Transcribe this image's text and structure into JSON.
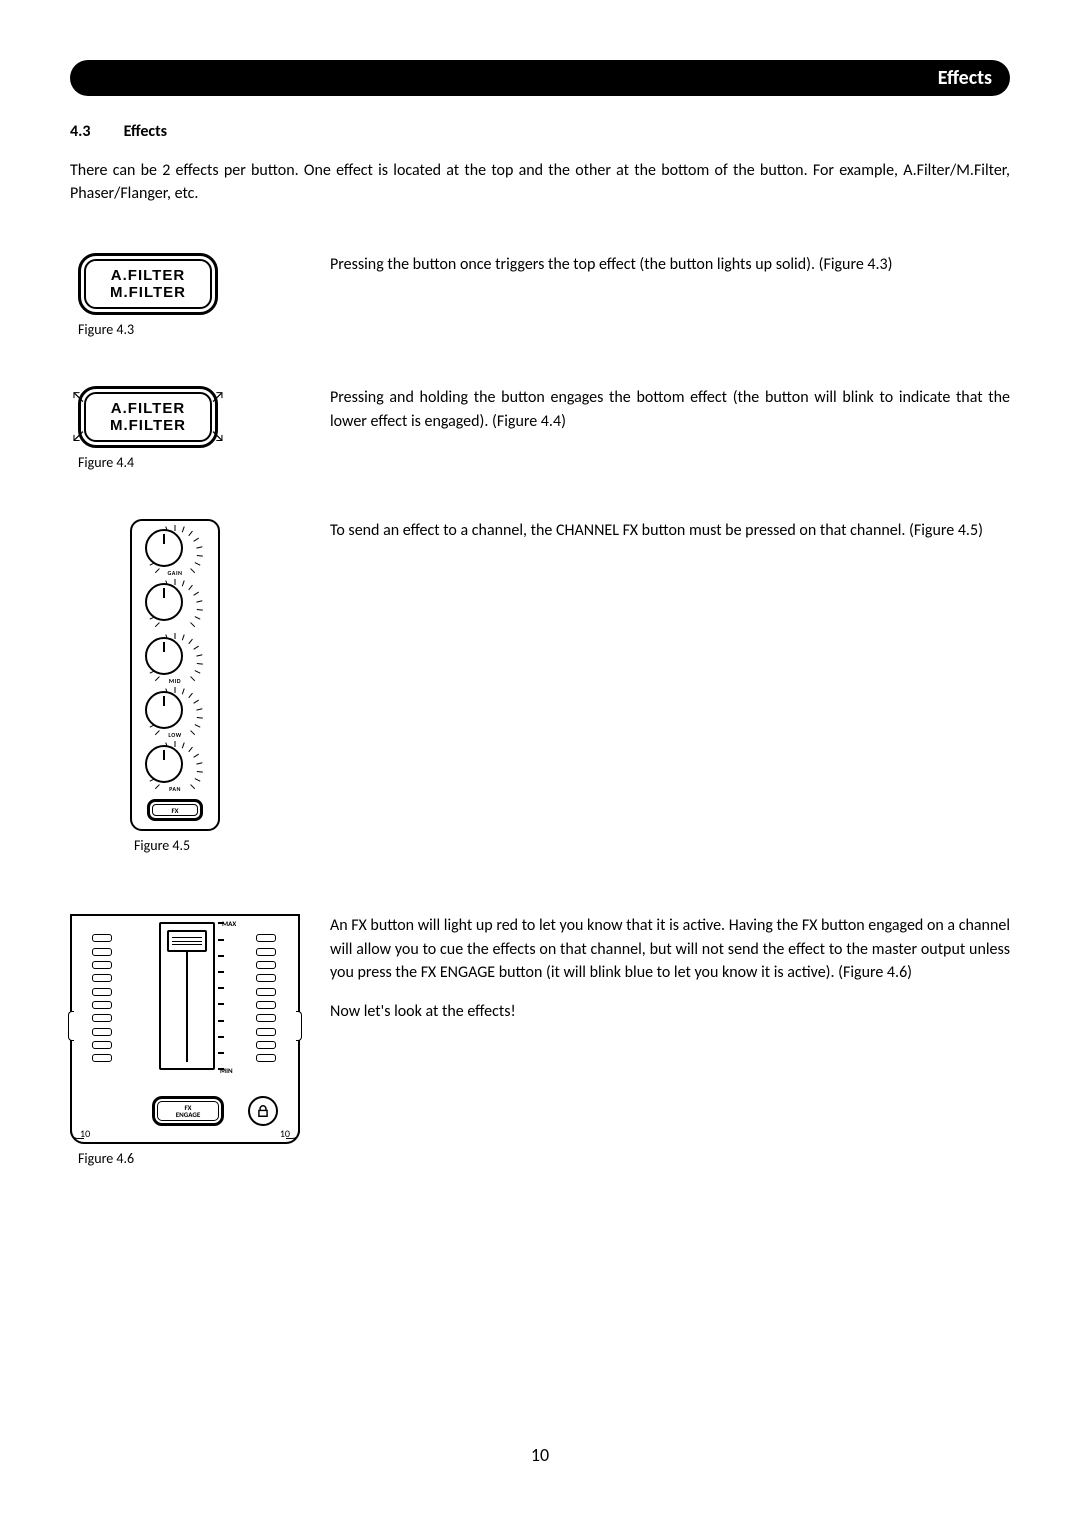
{
  "header": {
    "tab": "Effects"
  },
  "section": {
    "num": "4.3",
    "title": "Effects"
  },
  "intro": "There can be 2 effects per button. One effect is located at the top and the other at the bottom of the button. For example, A.Filter/M.Filter, Phaser/Flanger, etc.",
  "blocks": {
    "b43": {
      "caption": "Figure 4.3",
      "btn_top": "A.FILTER",
      "btn_bot": "M.FILTER",
      "text": "Pressing the button once triggers the top effect (the button lights up solid). (Figure 4.3)"
    },
    "b44": {
      "caption": "Figure 4.4",
      "btn_top": "A.FILTER",
      "btn_bot": "M.FILTER",
      "text": "Pressing and holding the button engages the bottom effect (the button will blink to indicate that the lower effect is engaged). (Figure 4.4)"
    },
    "b45": {
      "caption": "Figure 4.5",
      "text": "To send an effect to a channel, the CHANNEL FX button must be pressed on that channel. (Figure 4.5)",
      "knob_labels": {
        "gain": "GAIN",
        "mid": "MID",
        "low": "LOW",
        "pan": "PAN",
        "fx": "FX"
      }
    },
    "b46": {
      "caption": "Figure 4.6",
      "text1": "An FX button will light up red to let you know that it is active. Having the FX button engaged on a channel will allow you to cue the effects on that channel, but will not send the effect to the master output unless you press the FX ENGAGE button (it will blink blue to let you know it is active). (Figure 4.6)",
      "text2": "Now let's look at the effects!",
      "labels": {
        "max": "MAX",
        "min": "MIN",
        "fx_engage": "FX\nENGAGE",
        "ten": "10"
      }
    }
  },
  "pageNumber": "10",
  "colors": {
    "text": "#000000",
    "bg": "#ffffff",
    "header_bg": "#000000",
    "header_text": "#ffffff"
  }
}
